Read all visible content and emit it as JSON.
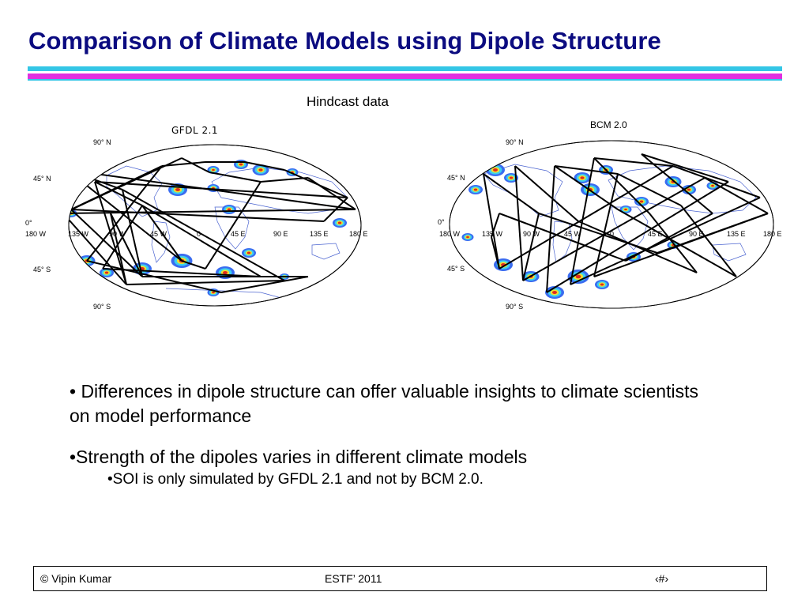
{
  "slide": {
    "title": "Comparison of Climate Models using Dipole Structure",
    "subtitle": "Hindcast data"
  },
  "colors": {
    "title": "#0b0b80",
    "rule_cyan": "#33c6e6",
    "rule_magenta": "#e030e0",
    "blob_blue": "#3a6cf0",
    "blob_cyan": "#3cd0f0",
    "blob_yellow": "#f0e030",
    "blob_red": "#e02a1e"
  },
  "maps": [
    {
      "label": "GFDL 2.1",
      "lat_labels": [
        "90° N",
        "45° N",
        "0°",
        "45° S",
        "90° S"
      ],
      "lon_labels": [
        "180 W",
        "135 W",
        "90 W",
        "45 W",
        "0",
        "45 E",
        "90 E",
        "135 E",
        "180 E"
      ]
    },
    {
      "label": "BCM 2.0",
      "lat_labels": [
        "90° N",
        "45° N",
        "0°",
        "45° S",
        "90° S"
      ],
      "lon_labels": [
        "180 W",
        "135 W",
        "90 W",
        "45 W",
        "0",
        "45 E",
        "90 E",
        "135 E",
        "180 E"
      ]
    }
  ],
  "bullets": {
    "item1": "• Differences in dipole structure can offer valuable insights to climate scientists on model performance",
    "item2": "•Strength of the dipoles varies in different climate models",
    "item2_sub": "•SOI is only simulated by GFDL 2.1 and not by BCM 2.0."
  },
  "footer": {
    "left": "© Vipin Kumar",
    "center": "ESTF’ 2011",
    "right": "‹#›"
  }
}
